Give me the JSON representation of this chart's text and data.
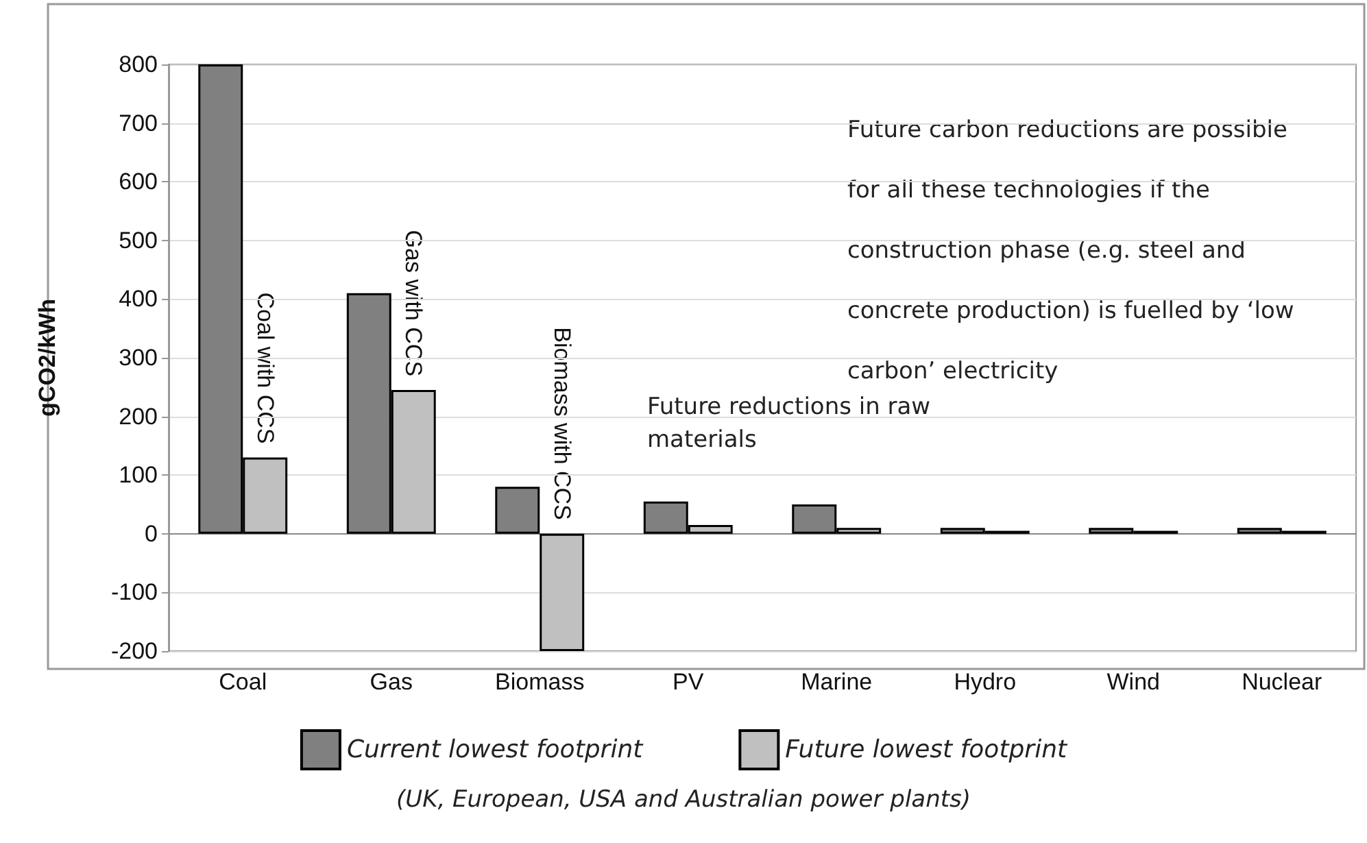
{
  "chart_data": {
    "type": "bar",
    "ylabel": "gCO2/kWh",
    "categories": [
      "Coal",
      "Gas",
      "Biomass",
      "PV",
      "Marine",
      "Hydro",
      "Wind",
      "Nuclear"
    ],
    "series": [
      {
        "name": "Current lowest footprint",
        "color": "#808080",
        "values": [
          800,
          410,
          80,
          55,
          50,
          10,
          10,
          10
        ]
      },
      {
        "name": "Future lowest footprint",
        "color": "#c0c0c0",
        "values": [
          130,
          245,
          -200,
          15,
          10,
          5,
          5,
          5
        ]
      }
    ],
    "ylim": [
      -200,
      800
    ],
    "yticks": [
      -200,
      -100,
      0,
      100,
      200,
      300,
      400,
      500,
      600,
      700,
      800
    ],
    "grid": "y",
    "legend": "bottom",
    "annotations": [
      {
        "text": "Coal with CCS",
        "x": "Coal",
        "y": 130
      },
      {
        "text": "Gas with CCS",
        "x": "Gas",
        "y": 245
      },
      {
        "text": "Biomass with CCS",
        "x": "Biomass",
        "y": 0
      },
      "Future reductions in raw materials",
      "Future carbon reductions are possible for all these technologies if the construction phase (e.g. steel and concrete production) is fuelled by ‘low carbon’ electricity",
      "(UK, European, USA and Australian power plants)"
    ]
  }
}
